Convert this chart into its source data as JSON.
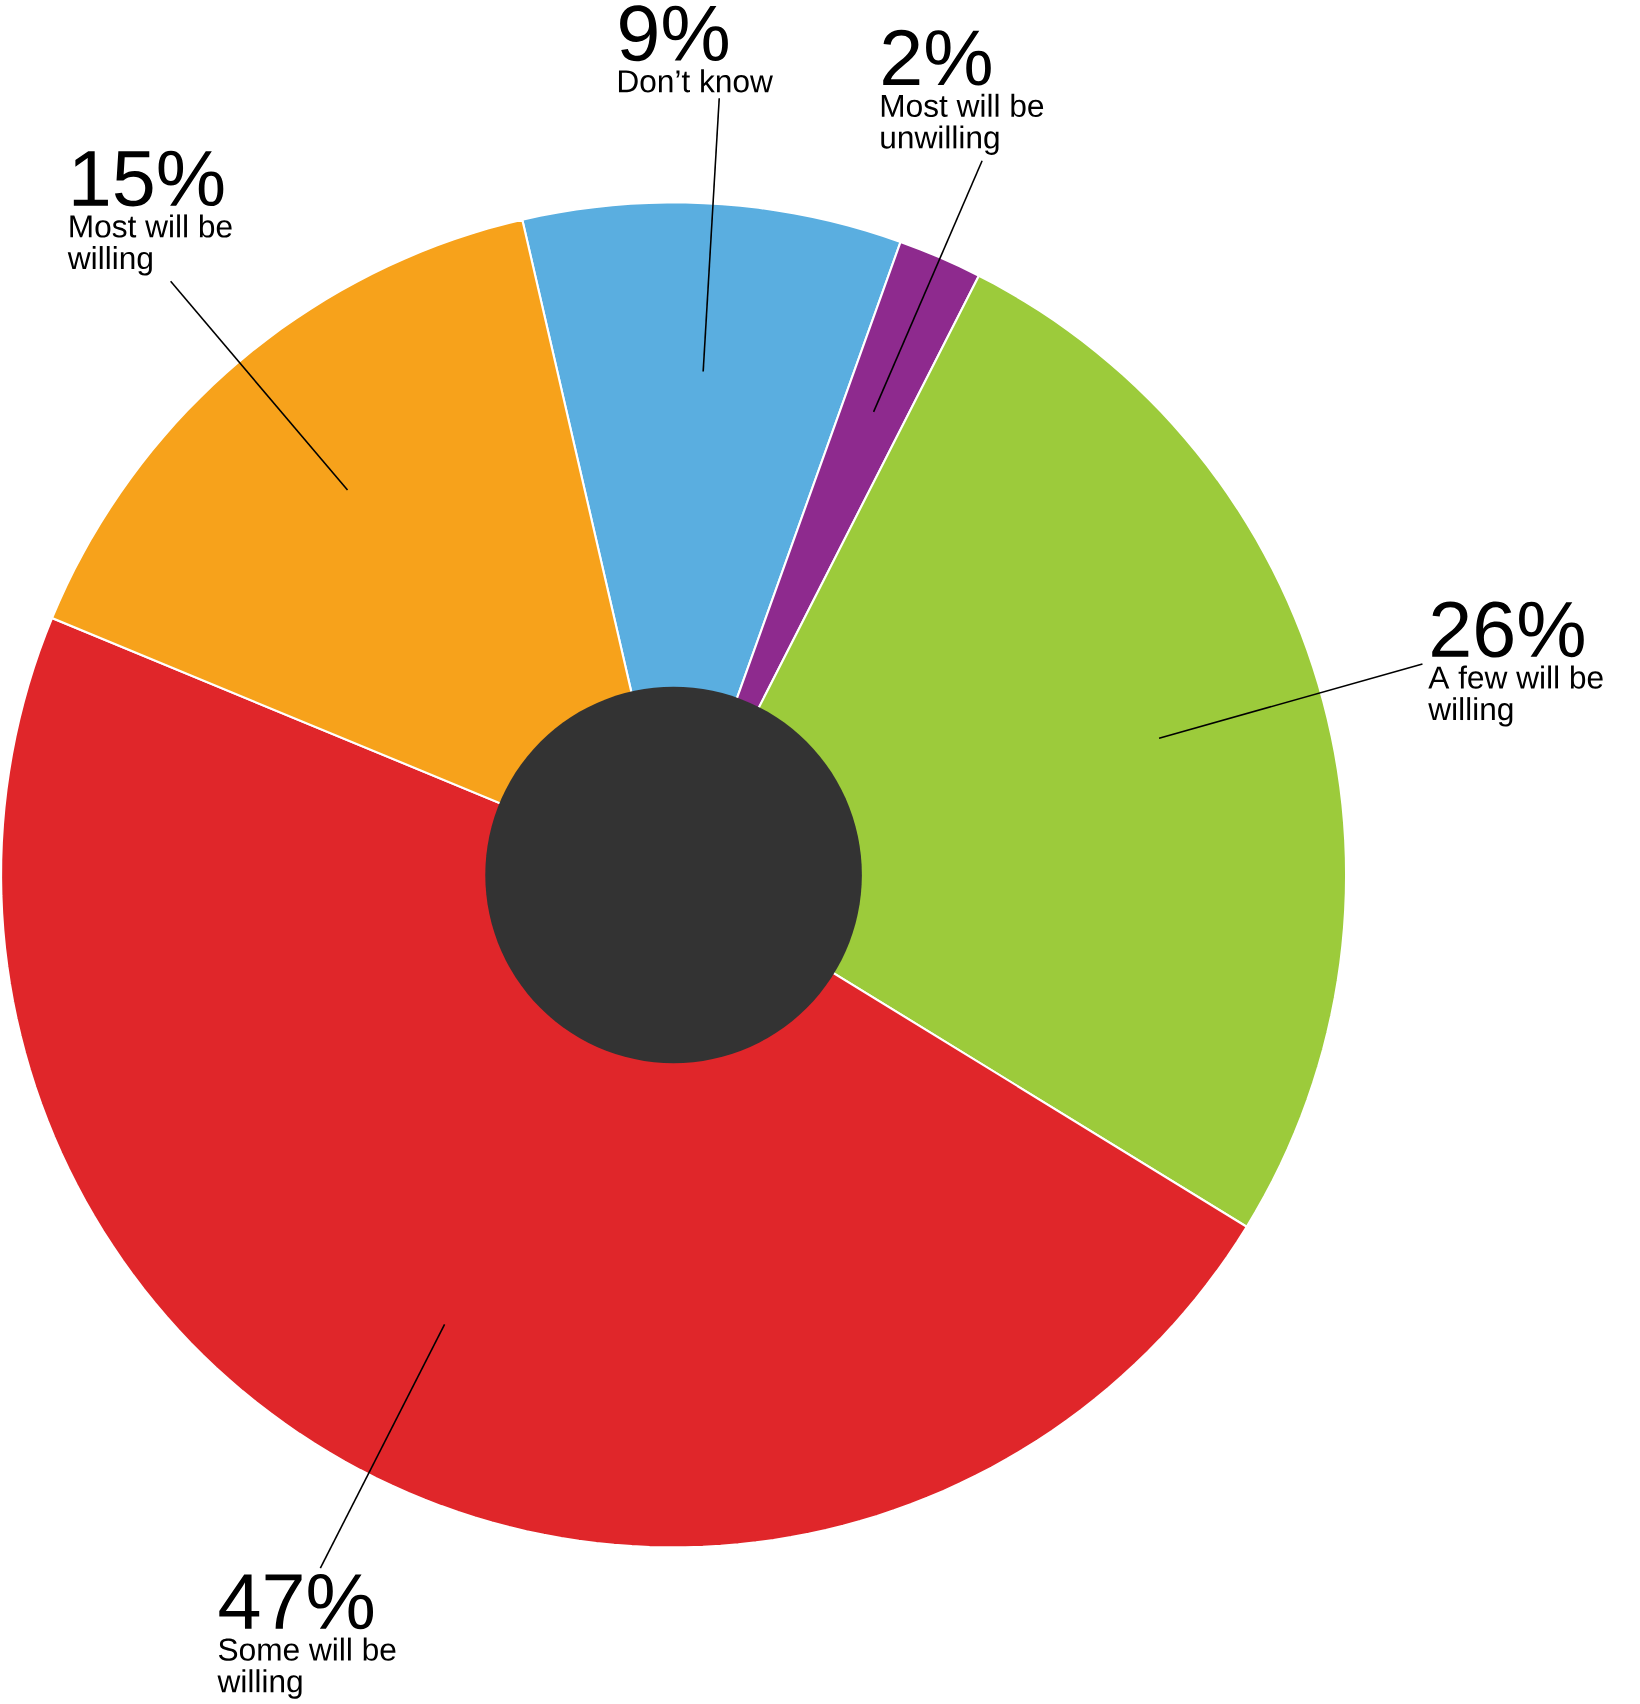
{
  "chart_data": {
    "type": "donut",
    "categories": [
      "Don’t know",
      "Most will be unwilling",
      "A few will be willing",
      "Some will be willing",
      "Most will be willing"
    ],
    "values": [
      9,
      2,
      26,
      47,
      15
    ],
    "value_labels": [
      "9%",
      "2%",
      "26%",
      "47%",
      "15%"
    ],
    "colors": [
      "#5aaee0",
      "#8e2a8e",
      "#9ccb3b",
      "#e0262a",
      "#f7a21b"
    ]
  }
}
